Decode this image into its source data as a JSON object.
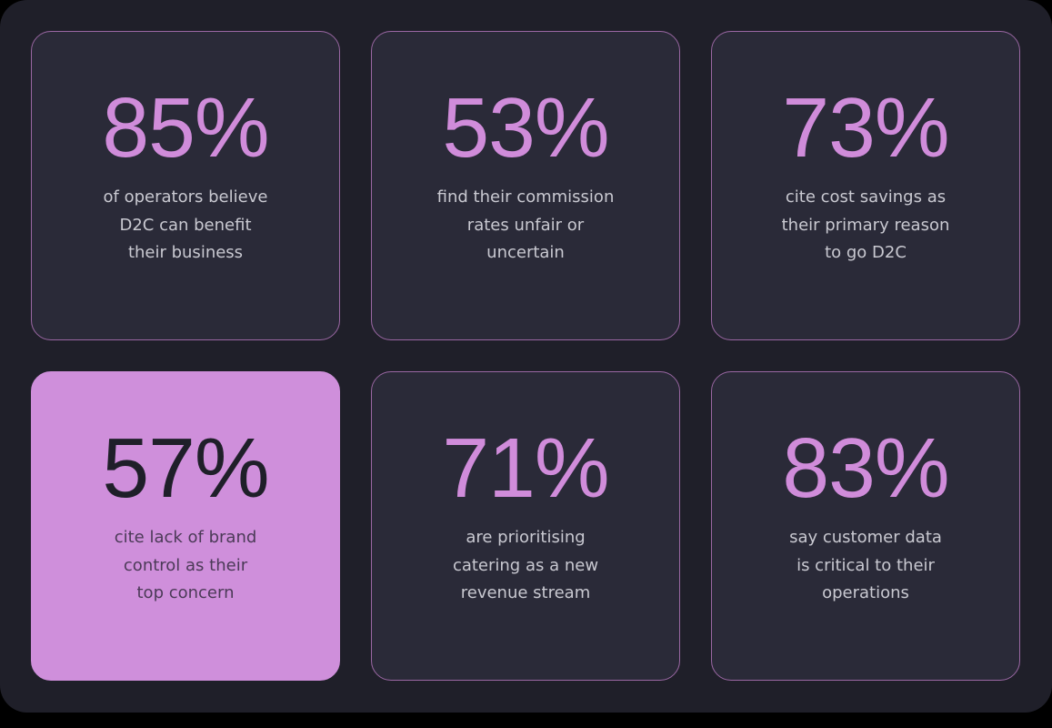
{
  "colors": {
    "page_background": "#000000",
    "panel_background": "#1f1f29",
    "card_background": "#2a2a38",
    "card_border": "#9a67a3",
    "accent": "#d08cda",
    "highlight_background": "#cf8fdb",
    "description_text": "#c9c9d1"
  },
  "cards": [
    {
      "stat": "85%",
      "highlighted": false,
      "lines": [
        "of operators believe",
        "D2C can benefit",
        "their business"
      ]
    },
    {
      "stat": "53%",
      "highlighted": false,
      "lines": [
        "find their commission",
        "rates unfair or",
        "uncertain"
      ]
    },
    {
      "stat": "73%",
      "highlighted": false,
      "lines": [
        "cite cost savings as",
        "their primary reason",
        "to go D2C"
      ]
    },
    {
      "stat": "57%",
      "highlighted": true,
      "lines": [
        "cite lack of brand",
        "control as their",
        "top concern"
      ]
    },
    {
      "stat": "71%",
      "highlighted": false,
      "lines": [
        "are prioritising",
        "catering as a new",
        "revenue stream"
      ]
    },
    {
      "stat": "83%",
      "highlighted": false,
      "lines": [
        "say customer data",
        "is critical to their",
        "operations"
      ]
    }
  ]
}
